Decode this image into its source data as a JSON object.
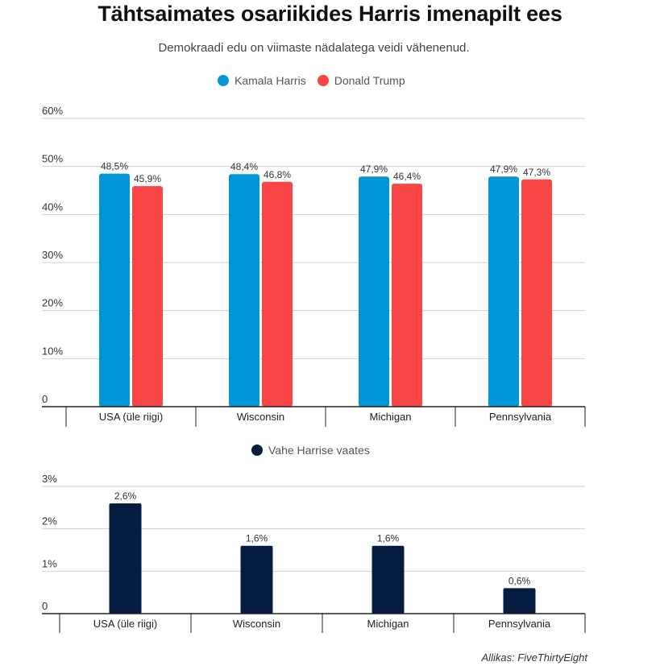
{
  "title": "Tähtsaimates osariikides Harris imenapilt ees",
  "subtitle": "Demokraadi edu on viimaste nädalatega veidi vähenenud.",
  "source": "Allikas: FiveThirtyEight",
  "colors": {
    "harris": "#0396d6",
    "trump": "#f84545",
    "margin": "#031c40",
    "grid": "#d0d0d0",
    "axis": "#222222"
  },
  "chart_data": [
    {
      "type": "bar",
      "categories": [
        "USA (üle riigi)",
        "Wisconsin",
        "Michigan",
        "Pennsylvania"
      ],
      "series": [
        {
          "name": "Kamala Harris",
          "values": [
            48.5,
            48.4,
            47.9,
            47.9
          ],
          "labels": [
            "48,5%",
            "48,4%",
            "47,9%",
            "47,9%"
          ]
        },
        {
          "name": "Donald Trump",
          "values": [
            45.9,
            46.8,
            46.4,
            47.3
          ],
          "labels": [
            "45,9%",
            "46,8%",
            "46,4%",
            "47,3%"
          ]
        }
      ],
      "yticks": [
        0,
        10,
        20,
        30,
        40,
        50,
        60
      ],
      "ytick_labels": [
        "0",
        "10%",
        "20%",
        "30%",
        "40%",
        "50%",
        "60%"
      ],
      "ylim": [
        0,
        60
      ],
      "grid": true,
      "legend": "top-center"
    },
    {
      "type": "bar",
      "categories": [
        "USA (üle riigi)",
        "Wisconsin",
        "Michigan",
        "Pennsylvania"
      ],
      "series": [
        {
          "name": "Vahe Harrise vaates",
          "values": [
            2.6,
            1.6,
            1.6,
            0.6
          ],
          "labels": [
            "2,6%",
            "1,6%",
            "1,6%",
            "0,6%"
          ]
        }
      ],
      "yticks": [
        0,
        1,
        2,
        3
      ],
      "ytick_labels": [
        "0",
        "1%",
        "2%",
        "3%"
      ],
      "ylim": [
        0,
        3
      ],
      "grid": true,
      "legend": "top-center"
    }
  ]
}
